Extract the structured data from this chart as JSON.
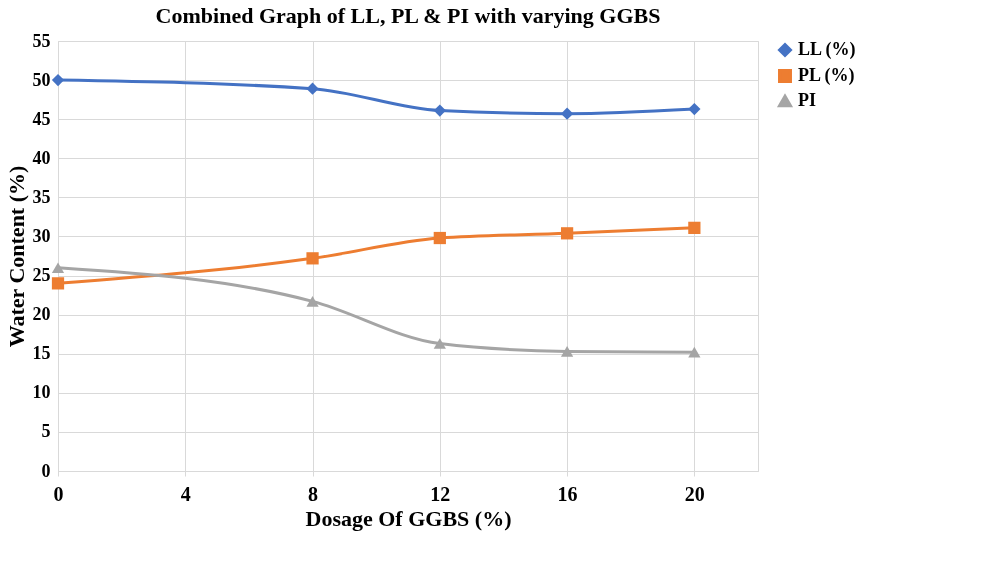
{
  "chart_data": {
    "type": "line",
    "title": "Combined Graph of LL, PL & PI with varying GGBS",
    "xlabel": "Dosage Of GGBS (%)",
    "ylabel": "Water Content (%)",
    "x": [
      0,
      8,
      12,
      16,
      20
    ],
    "series": [
      {
        "name": "LL (%)",
        "color": "#4472c4",
        "marker": "diamond",
        "values": [
          50,
          48.9,
          46.1,
          45.7,
          46.3
        ]
      },
      {
        "name": "PL (%)",
        "color": "#ed7d31",
        "marker": "square",
        "values": [
          24,
          27.2,
          29.8,
          30.4,
          31.1
        ]
      },
      {
        "name": "PI",
        "color": "#a5a5a5",
        "marker": "triangle",
        "values": [
          26,
          21.7,
          16.3,
          15.3,
          15.2
        ]
      }
    ],
    "xlim": [
      0,
      22
    ],
    "xticks": [
      0,
      4,
      8,
      12,
      16,
      20
    ],
    "ylim": [
      0,
      55
    ],
    "yticks": [
      0,
      5,
      10,
      15,
      20,
      25,
      30,
      35,
      40,
      45,
      50,
      55
    ],
    "grid": true,
    "legend": "right",
    "line_style": "solid"
  }
}
